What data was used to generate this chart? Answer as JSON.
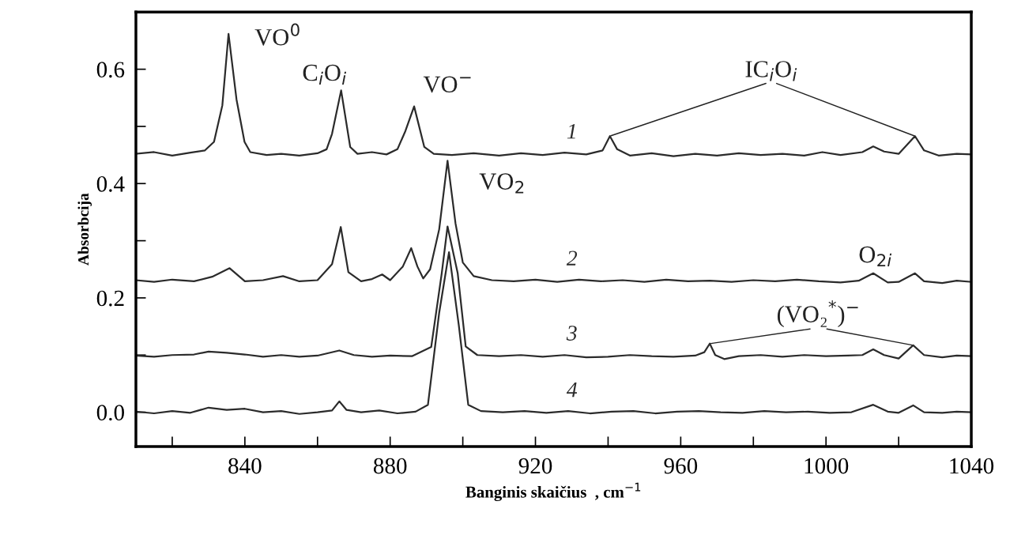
{
  "chart_data": {
    "type": "line",
    "xlabel": "Banginis skaičius  , cm$^{−1}$",
    "ylabel": "Absorbcija",
    "xlim": [
      810,
      1040
    ],
    "ylim": [
      -0.06,
      0.7
    ],
    "xticks": [
      {
        "value": 820,
        "label": null
      },
      840,
      {
        "value": 860,
        "label": null
      },
      880,
      {
        "value": 900,
        "label": null
      },
      920,
      {
        "value": 940,
        "label": null
      },
      960,
      {
        "value": 980,
        "label": null
      },
      1000,
      {
        "value": 1020,
        "label": null
      },
      1040
    ],
    "yticks": [
      {
        "value": 0,
        "label": "0.0"
      },
      {
        "value": 0.1,
        "label": null
      },
      0.2,
      {
        "value": 0.3,
        "label": null
      },
      0.4,
      {
        "value": 0.5,
        "label": null
      },
      0.6
    ],
    "series": [
      {
        "name": "1",
        "color": "#2b2b2b",
        "x": [
          810,
          815,
          820,
          825,
          829,
          831.5,
          833.8,
          835.5,
          837.7,
          839.9,
          841.5,
          846,
          850,
          855,
          860,
          862.5,
          864,
          866.5,
          869,
          871,
          875,
          879,
          882,
          884.2,
          886.6,
          889.4,
          892,
          897,
          903,
          910,
          916,
          922,
          928,
          934,
          938.5,
          940.5,
          942.5,
          946,
          952,
          958,
          964,
          970,
          976,
          982,
          988,
          994,
          999,
          1004,
          1010,
          1013,
          1016,
          1020,
          1024.5,
          1027,
          1031,
          1036,
          1040
        ],
        "values": [
          0.452,
          0.455,
          0.449,
          0.454,
          0.458,
          0.473,
          0.537,
          0.662,
          0.547,
          0.473,
          0.455,
          0.45,
          0.452,
          0.449,
          0.453,
          0.46,
          0.487,
          0.563,
          0.464,
          0.452,
          0.455,
          0.451,
          0.46,
          0.492,
          0.535,
          0.464,
          0.452,
          0.45,
          0.453,
          0.449,
          0.453,
          0.45,
          0.454,
          0.451,
          0.458,
          0.483,
          0.46,
          0.449,
          0.453,
          0.448,
          0.452,
          0.449,
          0.453,
          0.45,
          0.452,
          0.449,
          0.455,
          0.45,
          0.455,
          0.465,
          0.456,
          0.452,
          0.483,
          0.458,
          0.449,
          0.452,
          0.451
        ]
      },
      {
        "name": "2",
        "color": "#2b2b2b",
        "x": [
          810,
          815,
          820,
          826,
          831,
          835.8,
          840,
          845,
          850.5,
          855,
          860,
          864,
          866.4,
          868.5,
          872,
          875,
          877.8,
          880,
          883.5,
          885.8,
          887.5,
          889.1,
          891,
          893.5,
          895.8,
          898,
          900,
          903,
          908,
          914,
          920,
          926,
          932,
          938,
          944,
          950,
          956,
          962,
          968,
          974,
          980,
          986,
          992,
          998,
          1004,
          1009,
          1013,
          1017,
          1020,
          1024.5,
          1027,
          1032,
          1036,
          1040
        ],
        "values": [
          0.231,
          0.228,
          0.232,
          0.229,
          0.237,
          0.252,
          0.229,
          0.231,
          0.238,
          0.229,
          0.231,
          0.259,
          0.324,
          0.245,
          0.229,
          0.233,
          0.241,
          0.231,
          0.255,
          0.287,
          0.255,
          0.234,
          0.25,
          0.32,
          0.44,
          0.33,
          0.262,
          0.238,
          0.231,
          0.229,
          0.232,
          0.228,
          0.232,
          0.229,
          0.231,
          0.228,
          0.232,
          0.229,
          0.23,
          0.228,
          0.231,
          0.229,
          0.232,
          0.229,
          0.227,
          0.23,
          0.243,
          0.227,
          0.228,
          0.243,
          0.229,
          0.226,
          0.23,
          0.228
        ]
      },
      {
        "name": "3",
        "color": "#2b2b2b",
        "x": [
          810,
          815,
          820,
          826,
          830,
          835,
          840,
          845,
          850,
          855,
          860,
          866,
          870,
          875,
          880,
          886,
          891.3,
          894.2,
          895.8,
          898.6,
          900.8,
          904,
          910,
          916,
          922,
          928,
          934,
          940,
          946,
          952,
          958,
          964,
          966.5,
          968,
          969.5,
          972,
          976,
          982,
          988,
          994,
          1000,
          1006,
          1010,
          1013,
          1016,
          1020,
          1024,
          1027,
          1032,
          1036,
          1040
        ],
        "values": [
          0.099,
          0.097,
          0.1,
          0.101,
          0.106,
          0.104,
          0.101,
          0.097,
          0.1,
          0.097,
          0.099,
          0.108,
          0.1,
          0.097,
          0.099,
          0.098,
          0.114,
          0.243,
          0.325,
          0.243,
          0.115,
          0.1,
          0.098,
          0.1,
          0.097,
          0.1,
          0.096,
          0.097,
          0.1,
          0.098,
          0.097,
          0.099,
          0.105,
          0.12,
          0.1,
          0.093,
          0.098,
          0.1,
          0.097,
          0.1,
          0.098,
          0.099,
          0.1,
          0.11,
          0.1,
          0.094,
          0.117,
          0.1,
          0.096,
          0.099,
          0.098
        ]
      },
      {
        "name": "4",
        "color": "#2b2b2b",
        "x": [
          810,
          815,
          820,
          825,
          830,
          835,
          840,
          845,
          850,
          855,
          860,
          864,
          866,
          868,
          872,
          877,
          882,
          887,
          890.4,
          893.5,
          896.2,
          898.9,
          901.5,
          905,
          911,
          917,
          923,
          929,
          935,
          941,
          947,
          953,
          959,
          965,
          971,
          977,
          983,
          989,
          995,
          1001,
          1007,
          1013,
          1017,
          1020,
          1024,
          1027,
          1032,
          1036,
          1040
        ],
        "values": [
          0.001,
          -0.002,
          0.002,
          -0.001,
          0.008,
          0.004,
          0.006,
          0.0,
          0.002,
          -0.003,
          0.0,
          0.003,
          0.019,
          0.004,
          0.0,
          0.003,
          -0.002,
          0.001,
          0.013,
          0.174,
          0.28,
          0.152,
          0.013,
          0.002,
          0.0,
          0.002,
          -0.001,
          0.002,
          -0.002,
          0.001,
          0.002,
          -0.002,
          0.001,
          0.002,
          0.0,
          -0.001,
          0.002,
          0.0,
          0.001,
          -0.001,
          0.0,
          0.013,
          0.001,
          -0.001,
          0.012,
          0.0,
          -0.001,
          0.001,
          0.0
        ]
      }
    ],
    "annotations": [
      {
        "text": "VO$^{0}$",
        "x": 835.5,
        "y": 0.662
      },
      {
        "text": "C$_{i}$O$_{i}$",
        "x": 866.5,
        "y": 0.563
      },
      {
        "text": "VO$^{−}$",
        "x": 886.6,
        "y": 0.535
      },
      {
        "text": "VO$_{2}$",
        "x": 895.8,
        "y": 0.44
      },
      {
        "text": "IC$_{i}$O$_{i}$",
        "x": 940.5,
        "y": 0.483
      },
      {
        "text": "O$_{2i}$",
        "x": 1013,
        "y": 0.243
      },
      {
        "text": "(VO₂$^{*}$)$^{−}$",
        "x": 968,
        "y": 0.12
      }
    ]
  }
}
